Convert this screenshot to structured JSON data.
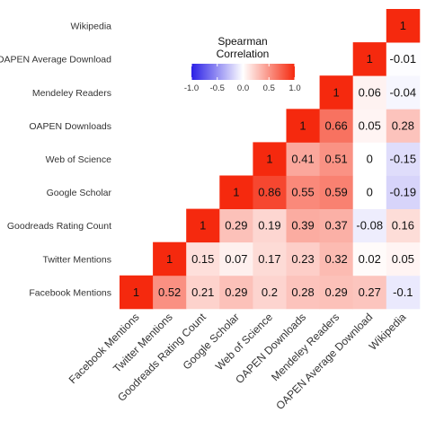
{
  "chart_data": {
    "type": "heatmap",
    "title": "",
    "variables": [
      "Facebook Mentions",
      "Twitter Mentions",
      "Goodreads Rating Count",
      "Google Scholar",
      "Web of Science",
      "OAPEN Downloads",
      "Mendeley Readers",
      "OAPEN Average Download",
      "Wikipedia"
    ],
    "row_labels": [
      "Wikipedia",
      "OAPEN Average Download",
      "Mendeley Readers",
      "OAPEN Downloads",
      "Web of Science",
      "Google Scholar",
      "Goodreads Rating Count",
      "Twitter Mentions",
      "Facebook Mentions"
    ],
    "row_labels_display": [
      "Wikipedia",
      "OAPEN Average Download",
      "Mendeley Readers",
      "OAPEN Downloads",
      "Web of Science",
      "Google Scholar",
      "Goodreads Rating Count",
      "Twitter Mentions",
      "Facebook Mentions"
    ],
    "matrix": [
      [
        1,
        0.52,
        0.21,
        0.29,
        0.2,
        0.28,
        0.29,
        0.27,
        -0.1
      ],
      [
        null,
        1,
        0.15,
        0.07,
        0.17,
        0.23,
        0.32,
        0.02,
        0.05
      ],
      [
        null,
        null,
        1,
        0.29,
        0.19,
        0.39,
        0.37,
        -0.08,
        0.16
      ],
      [
        null,
        null,
        null,
        1,
        0.86,
        0.55,
        0.59,
        0,
        -0.19
      ],
      [
        null,
        null,
        null,
        null,
        1,
        0.41,
        0.51,
        0,
        -0.15
      ],
      [
        null,
        null,
        null,
        null,
        null,
        1,
        0.66,
        0.05,
        0.28
      ],
      [
        null,
        null,
        null,
        null,
        null,
        null,
        1,
        0.06,
        -0.04
      ],
      [
        null,
        null,
        null,
        null,
        null,
        null,
        null,
        1,
        -0.01
      ],
      [
        null,
        null,
        null,
        null,
        null,
        null,
        null,
        null,
        1
      ]
    ],
    "value_range": [
      -1,
      1
    ],
    "legend": {
      "title_line1": "Spearman",
      "title_line2": "Correlation",
      "ticks": [
        "-1.0",
        "-0.5",
        "0.0",
        "0.5",
        "1.0"
      ],
      "tick_values": [
        -1,
        -0.5,
        0,
        0.5,
        1
      ],
      "placement": "top"
    },
    "colors": {
      "low": "#2a1fe6",
      "mid": "#ffffff",
      "high": "#f5290e"
    },
    "grid": false
  }
}
